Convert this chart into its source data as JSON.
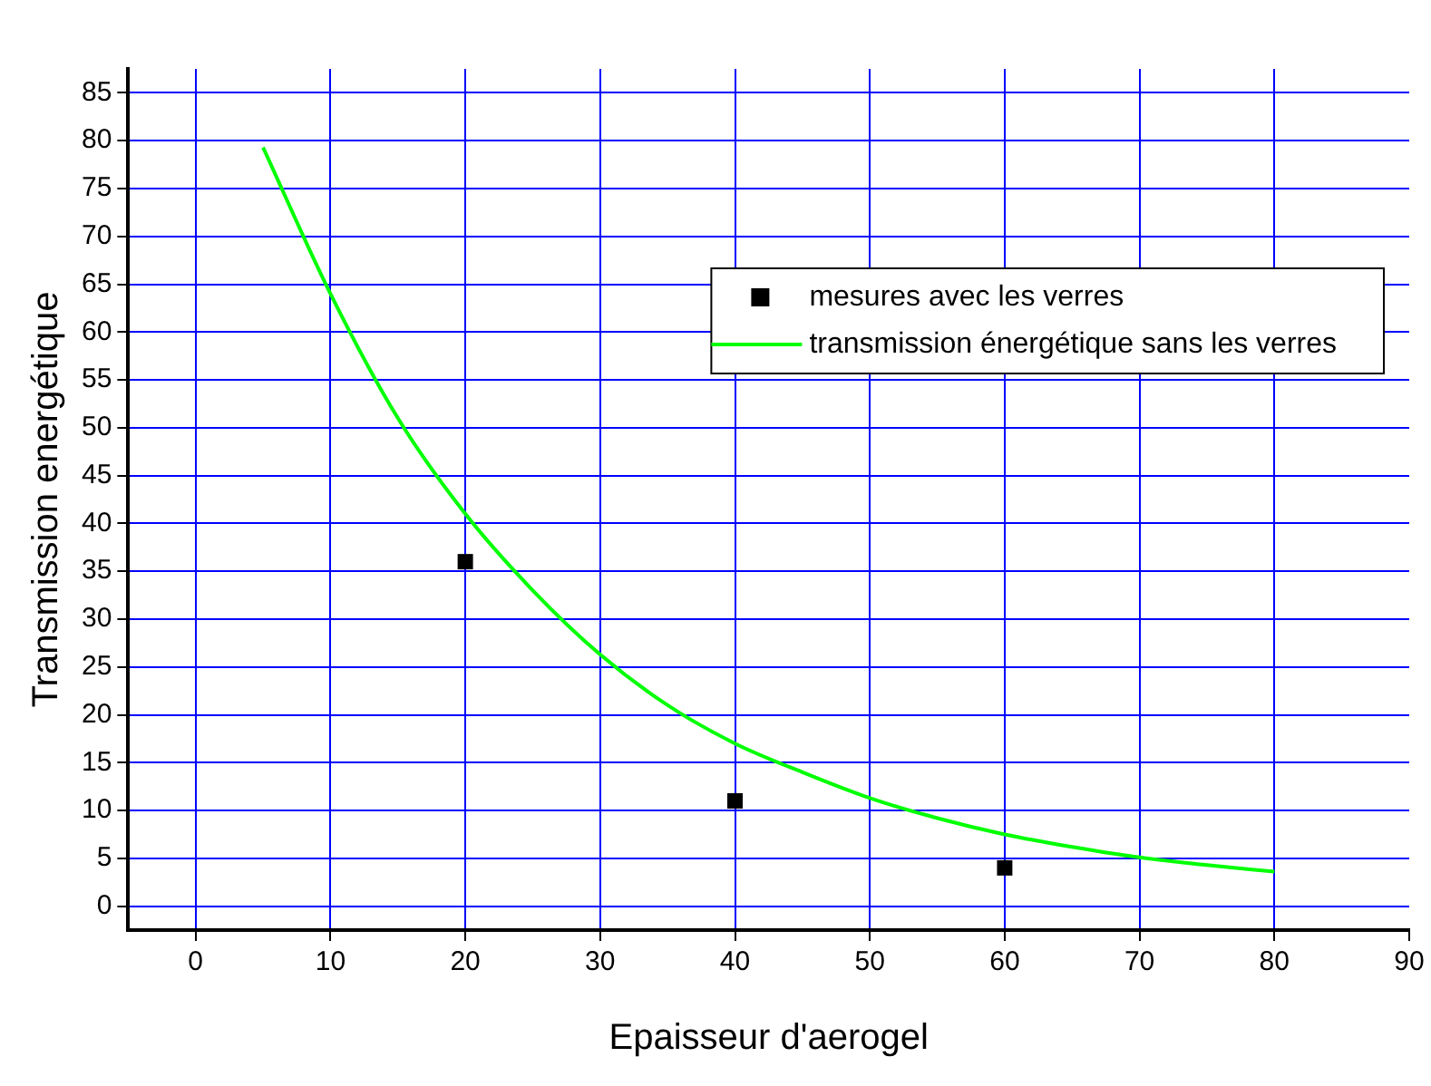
{
  "chart_data": {
    "type": "line",
    "xlabel": "Epaisseur d'aerogel",
    "ylabel": "Transmission energétique",
    "xlim": [
      -5,
      90
    ],
    "xticks": [
      0,
      10,
      20,
      30,
      40,
      50,
      60,
      70,
      80,
      90
    ],
    "ylim": [
      -2.5,
      87.5
    ],
    "yticks": [
      0,
      5,
      10,
      15,
      20,
      25,
      30,
      35,
      40,
      45,
      50,
      55,
      60,
      65,
      70,
      75,
      80,
      85
    ],
    "grid": true,
    "legend": "top right",
    "series": [
      {
        "name": "mesures avec les verres",
        "type": "scatter",
        "marker": "square",
        "color": "#000000",
        "x": [
          20,
          40,
          60
        ],
        "values": [
          36,
          11,
          4
        ]
      },
      {
        "name": "transmission énergétique sans les verres",
        "type": "line",
        "marker": "none",
        "color": "#00ff00",
        "x": [
          5,
          10,
          15,
          20,
          25,
          30,
          35,
          40,
          45,
          50,
          55,
          60,
          65,
          70,
          75,
          80
        ],
        "values": [
          79.3,
          64,
          51,
          41,
          33,
          26.3,
          21,
          17,
          14,
          11.3,
          9.2,
          7.5,
          6.2,
          5.1,
          4.3,
          3.6
        ]
      }
    ]
  }
}
